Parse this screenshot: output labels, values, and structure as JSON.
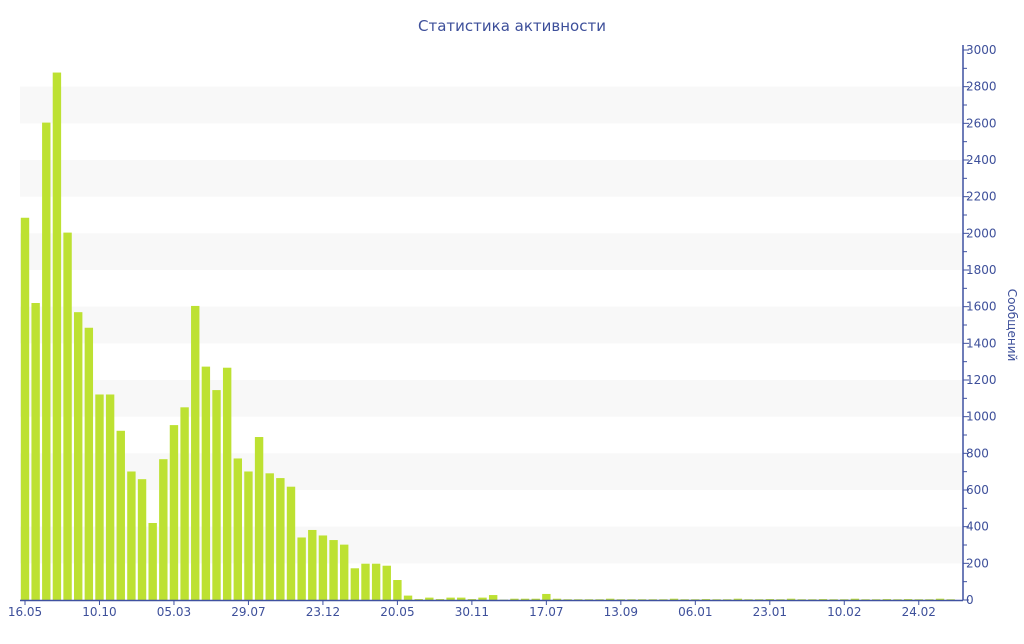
{
  "chart_data": {
    "type": "bar",
    "title": "Статистика активности",
    "xlabel": "",
    "ylabel": "Сообщений",
    "ylim": [
      0,
      3000
    ],
    "y_axis_side": "right",
    "y_ticks": [
      0,
      200,
      400,
      600,
      800,
      1000,
      1200,
      1400,
      1600,
      1800,
      2000,
      2200,
      2400,
      2600,
      2800,
      3000
    ],
    "grid": "alternating horizontal bands",
    "x_tick_labels": [
      "16.05",
      "10.10",
      "05.03",
      "29.07",
      "23.12",
      "20.05",
      "30.11",
      "17.07",
      "13.09",
      "06.01",
      "23.01",
      "10.02",
      "24.02"
    ],
    "x_tick_every": 7,
    "values": [
      2085,
      1620,
      2604,
      2877,
      2004,
      1570,
      1485,
      1121,
      1121,
      923,
      701,
      659,
      420,
      768,
      954,
      1051,
      1604,
      1273,
      1145,
      1267,
      772,
      701,
      889,
      691,
      665,
      618,
      341,
      382,
      352,
      327,
      302,
      173,
      198,
      198,
      187,
      109,
      24,
      5,
      13,
      5,
      13,
      13,
      5,
      13,
      27,
      2,
      7,
      7,
      7,
      33,
      7,
      4,
      4,
      4,
      4,
      7,
      4,
      4,
      4,
      4,
      4,
      7,
      4,
      4,
      5,
      4,
      4,
      7,
      4,
      4,
      5,
      4,
      7,
      4,
      4,
      5,
      4,
      4,
      7,
      4,
      4,
      5,
      4,
      5,
      4,
      4,
      7,
      4
    ],
    "colors": {
      "bar": "#bde132",
      "text": "#3d4f9a",
      "axis": "#3f51a0",
      "band": "#f8f8f8"
    }
  }
}
